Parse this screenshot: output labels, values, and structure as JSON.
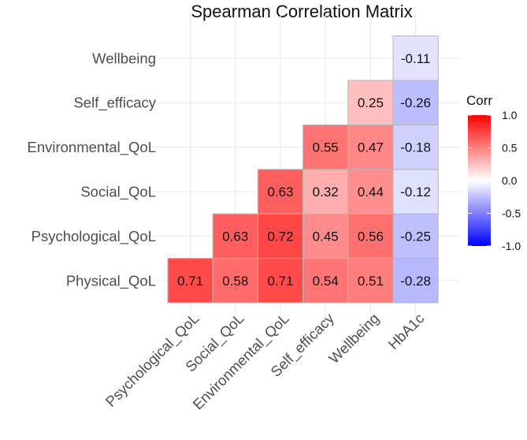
{
  "chart_data": {
    "type": "heatmap",
    "title": "Spearman Correlation Matrix",
    "x_categories": [
      "Psychological_QoL",
      "Social_QoL",
      "Environmental_QoL",
      "Self_efficacy",
      "Wellbeing",
      "HbA1c"
    ],
    "y_categories": [
      "Physical_QoL",
      "Psychological_QoL",
      "Social_QoL",
      "Environmental_QoL",
      "Self_efficacy",
      "Wellbeing"
    ],
    "cells": [
      {
        "x": "Psychological_QoL",
        "y": "Physical_QoL",
        "value": 0.71,
        "label": "0.71"
      },
      {
        "x": "Social_QoL",
        "y": "Physical_QoL",
        "value": 0.58,
        "label": "0.58"
      },
      {
        "x": "Environmental_QoL",
        "y": "Physical_QoL",
        "value": 0.71,
        "label": "0.71"
      },
      {
        "x": "Self_efficacy",
        "y": "Physical_QoL",
        "value": 0.54,
        "label": "0.54"
      },
      {
        "x": "Wellbeing",
        "y": "Physical_QoL",
        "value": 0.51,
        "label": "0.51"
      },
      {
        "x": "HbA1c",
        "y": "Physical_QoL",
        "value": -0.28,
        "label": "-0.28"
      },
      {
        "x": "Social_QoL",
        "y": "Psychological_QoL",
        "value": 0.63,
        "label": "0.63"
      },
      {
        "x": "Environmental_QoL",
        "y": "Psychological_QoL",
        "value": 0.72,
        "label": "0.72"
      },
      {
        "x": "Self_efficacy",
        "y": "Psychological_QoL",
        "value": 0.45,
        "label": "0.45"
      },
      {
        "x": "Wellbeing",
        "y": "Psychological_QoL",
        "value": 0.56,
        "label": "0.56"
      },
      {
        "x": "HbA1c",
        "y": "Psychological_QoL",
        "value": -0.25,
        "label": "-0.25"
      },
      {
        "x": "Environmental_QoL",
        "y": "Social_QoL",
        "value": 0.63,
        "label": "0.63"
      },
      {
        "x": "Self_efficacy",
        "y": "Social_QoL",
        "value": 0.32,
        "label": "0.32"
      },
      {
        "x": "Wellbeing",
        "y": "Social_QoL",
        "value": 0.44,
        "label": "0.44"
      },
      {
        "x": "HbA1c",
        "y": "Social_QoL",
        "value": -0.12,
        "label": "-0.12"
      },
      {
        "x": "Self_efficacy",
        "y": "Environmental_QoL",
        "value": 0.55,
        "label": "0.55"
      },
      {
        "x": "Wellbeing",
        "y": "Environmental_QoL",
        "value": 0.47,
        "label": "0.47"
      },
      {
        "x": "HbA1c",
        "y": "Environmental_QoL",
        "value": -0.18,
        "label": "-0.18"
      },
      {
        "x": "Wellbeing",
        "y": "Self_efficacy",
        "value": 0.25,
        "label": "0.25"
      },
      {
        "x": "HbA1c",
        "y": "Self_efficacy",
        "value": -0.26,
        "label": "-0.26"
      },
      {
        "x": "HbA1c",
        "y": "Wellbeing",
        "value": -0.11,
        "label": "-0.11"
      }
    ],
    "legend": {
      "title": "Corr",
      "position": "right",
      "ticks": [
        "1.0",
        "0.5",
        "0.0",
        "-0.5",
        "-1.0"
      ],
      "limits": [
        -1.0,
        1.0
      ]
    },
    "color_scale": {
      "low": "#0000ff",
      "mid": "#ffffff",
      "high": "#ff0000"
    },
    "grid": true
  }
}
